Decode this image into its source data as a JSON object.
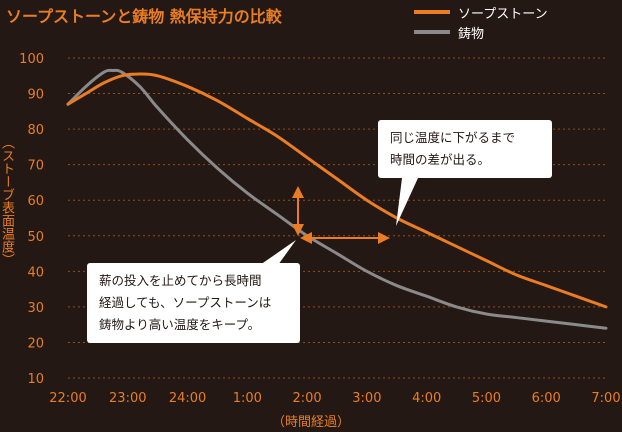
{
  "header": {
    "title": "ソープストーンと鋳物 熱保持力の比較"
  },
  "legend": [
    {
      "label": "ソープストーン",
      "color": "#ea7d24"
    },
    {
      "label": "鋳物",
      "color": "#8a8a8a"
    }
  ],
  "callouts": {
    "top": {
      "lines": [
        "同じ温度に下がるまで",
        "時間の差が出る。"
      ]
    },
    "bottom": {
      "lines": [
        "薪の投入を止めてから長時間",
        "経過しても、ソープストーンは",
        "鋳物より高い温度をキープ。"
      ]
    }
  },
  "chart_data": {
    "type": "line",
    "title": "ソープストーンと鋳物 熱保持力の比較",
    "xlabel": "（時間経過）",
    "ylabel": "（ストーブ表面温度）",
    "categories": [
      "22:00",
      "23:00",
      "24:00",
      "1:00",
      "2:00",
      "3:00",
      "4:00",
      "5:00",
      "6:00",
      "7:00"
    ],
    "yticks": [
      10,
      20,
      30,
      40,
      50,
      60,
      70,
      80,
      90,
      100
    ],
    "ylim": [
      10,
      100
    ],
    "grid": "horizontal dashed",
    "legend_position": "top-right",
    "series": [
      {
        "name": "ソープストーン",
        "color": "#ea7d24",
        "x": [
          0,
          0.3,
          0.6,
          0.9,
          1.2,
          1.5,
          2.0,
          2.5,
          3.0,
          3.5,
          4.0,
          4.5,
          5.0,
          5.5,
          6.0,
          6.5,
          7.0,
          7.5,
          8.0,
          8.5,
          9.0
        ],
        "values": [
          87,
          90,
          93,
          95,
          95.5,
          95,
          92,
          88,
          83,
          78,
          72,
          66,
          60,
          55,
          51,
          47,
          43,
          39,
          36,
          33,
          30
        ]
      },
      {
        "name": "鋳物",
        "color": "#8a8a8a",
        "x": [
          0,
          0.3,
          0.6,
          0.75,
          0.9,
          1.2,
          1.5,
          2.0,
          2.5,
          3.0,
          3.5,
          4.0,
          4.5,
          5.0,
          5.5,
          6.0,
          6.5,
          7.0,
          7.5,
          8.0,
          8.5,
          9.0
        ],
        "values": [
          87,
          92,
          96,
          96.5,
          96,
          92,
          86,
          77,
          69,
          62,
          56,
          50,
          45,
          40,
          36,
          33,
          30,
          28,
          27,
          26,
          25,
          24
        ]
      }
    ]
  }
}
